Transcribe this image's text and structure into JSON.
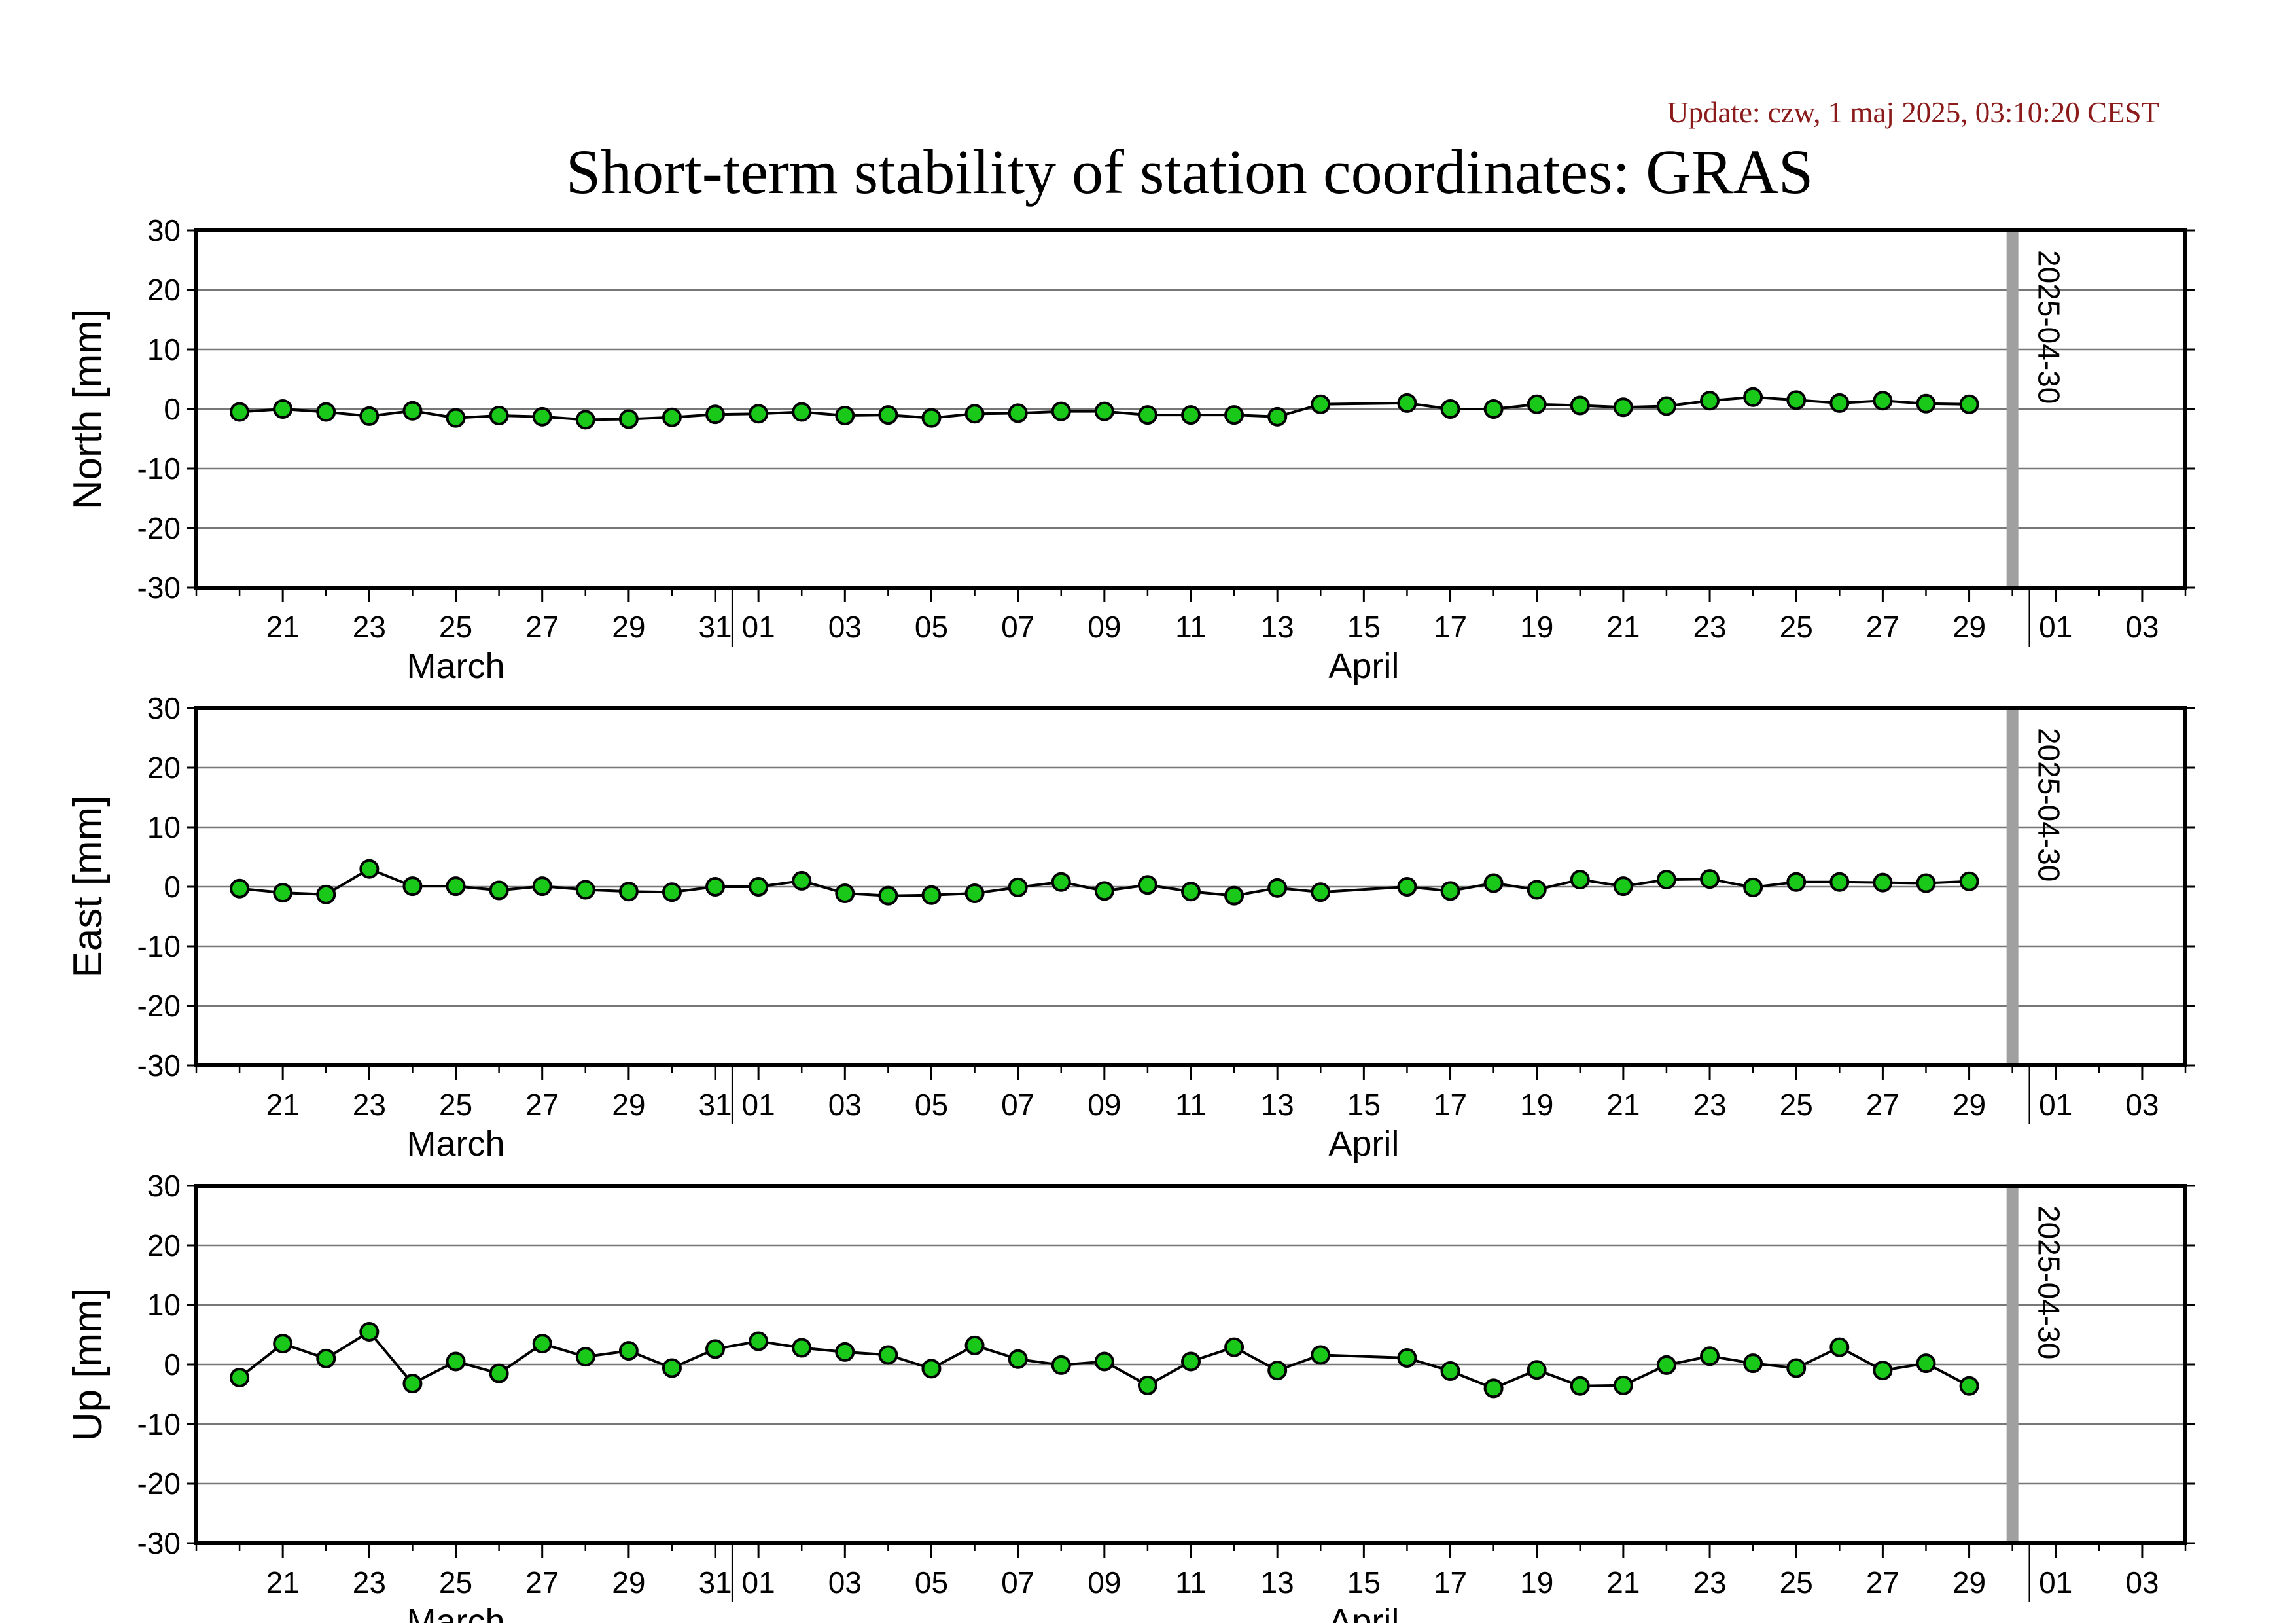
{
  "update_text": "Update: czw, 1 maj 2025, 03:10:20 CEST",
  "title": "Short-term stability of station coordinates: GRAS",
  "colors": {
    "marker_fill": "#19c819",
    "marker_stroke": "#000000",
    "line": "#000000",
    "grid": "#777777",
    "marker_line": "#a0a0a0",
    "update_text": "#8b1a1a"
  },
  "chart_data": {
    "type": "line",
    "x_axis": {
      "type": "date",
      "range": [
        "2025-03-19",
        "2025-05-04"
      ],
      "tick_labels": [
        {
          "date": "2025-03-21",
          "label": "21"
        },
        {
          "date": "2025-03-23",
          "label": "23"
        },
        {
          "date": "2025-03-25",
          "label": "25"
        },
        {
          "date": "2025-03-27",
          "label": "27"
        },
        {
          "date": "2025-03-29",
          "label": "29"
        },
        {
          "date": "2025-03-31",
          "label": "31"
        },
        {
          "date": "2025-04-01",
          "label": "01"
        },
        {
          "date": "2025-04-03",
          "label": "03"
        },
        {
          "date": "2025-04-05",
          "label": "05"
        },
        {
          "date": "2025-04-07",
          "label": "07"
        },
        {
          "date": "2025-04-09",
          "label": "09"
        },
        {
          "date": "2025-04-11",
          "label": "11"
        },
        {
          "date": "2025-04-13",
          "label": "13"
        },
        {
          "date": "2025-04-15",
          "label": "15"
        },
        {
          "date": "2025-04-17",
          "label": "17"
        },
        {
          "date": "2025-04-19",
          "label": "19"
        },
        {
          "date": "2025-04-21",
          "label": "21"
        },
        {
          "date": "2025-04-23",
          "label": "23"
        },
        {
          "date": "2025-04-25",
          "label": "25"
        },
        {
          "date": "2025-04-27",
          "label": "27"
        },
        {
          "date": "2025-04-29",
          "label": "29"
        },
        {
          "date": "2025-05-01",
          "label": "01"
        },
        {
          "date": "2025-05-03",
          "label": "03"
        }
      ],
      "month_labels": [
        {
          "date": "2025-03-25",
          "label": "March"
        },
        {
          "date": "2025-04-15",
          "label": "April"
        }
      ],
      "month_boundaries": [
        "2025-04-01",
        "2025-05-01"
      ]
    },
    "marker_line": {
      "date": "2025-04-30",
      "label": "2025-04-30"
    },
    "x": [
      "2025-03-20",
      "2025-03-21",
      "2025-03-22",
      "2025-03-23",
      "2025-03-24",
      "2025-03-25",
      "2025-03-26",
      "2025-03-27",
      "2025-03-28",
      "2025-03-29",
      "2025-03-30",
      "2025-03-31",
      "2025-04-01",
      "2025-04-02",
      "2025-04-03",
      "2025-04-04",
      "2025-04-05",
      "2025-04-06",
      "2025-04-07",
      "2025-04-08",
      "2025-04-09",
      "2025-04-10",
      "2025-04-11",
      "2025-04-12",
      "2025-04-13",
      "2025-04-14",
      "2025-04-16",
      "2025-04-17",
      "2025-04-18",
      "2025-04-19",
      "2025-04-20",
      "2025-04-21",
      "2025-04-22",
      "2025-04-23",
      "2025-04-24",
      "2025-04-25",
      "2025-04-26",
      "2025-04-27",
      "2025-04-28",
      "2025-04-29"
    ],
    "series": [
      {
        "name": "North",
        "ylabel": "North [mm]",
        "ylim": [
          -30,
          30
        ],
        "yticks": [
          30,
          20,
          10,
          0,
          -10,
          -20,
          -30
        ],
        "values": [
          -0.5,
          0,
          -0.5,
          -1.2,
          -0.3,
          -1.5,
          -1.1,
          -1.3,
          -1.8,
          -1.7,
          -1.4,
          -0.9,
          -0.8,
          -0.5,
          -1.1,
          -1.0,
          -1.5,
          -0.8,
          -0.7,
          -0.4,
          -0.4,
          -1.0,
          -1.0,
          -1.0,
          -1.3,
          0.8,
          1.0,
          0,
          0,
          0.8,
          0.6,
          0.3,
          0.5,
          1.4,
          2.0,
          1.5,
          1.0,
          1.4,
          0.9,
          0.8
        ]
      },
      {
        "name": "East",
        "ylabel": "East [mm]",
        "ylim": [
          -30,
          30
        ],
        "yticks": [
          30,
          20,
          10,
          0,
          -10,
          -20,
          -30
        ],
        "values": [
          -0.3,
          -1.0,
          -1.3,
          3.0,
          0.1,
          0.1,
          -0.6,
          0.1,
          -0.5,
          -0.8,
          -0.9,
          0,
          0,
          1.0,
          -1.1,
          -1.5,
          -1.4,
          -1.1,
          -0.1,
          0.8,
          -0.7,
          0.3,
          -0.8,
          -1.5,
          -0.2,
          -0.9,
          0,
          -0.7,
          0.6,
          -0.5,
          1.2,
          0.1,
          1.2,
          1.3,
          -0.1,
          0.8,
          0.8,
          0.7,
          0.6,
          0.9
        ]
      },
      {
        "name": "Up",
        "ylabel": "Up [mm]",
        "ylim": [
          -30,
          30
        ],
        "yticks": [
          30,
          20,
          10,
          0,
          -10,
          -20,
          -30
        ],
        "values": [
          -2.2,
          3.5,
          1.0,
          5.5,
          -3.2,
          0.5,
          -1.5,
          3.5,
          1.3,
          2.3,
          -0.6,
          2.6,
          3.9,
          2.8,
          2.1,
          1.6,
          -0.7,
          3.2,
          0.9,
          -0.1,
          0.5,
          -3.5,
          0.5,
          2.9,
          -1.0,
          1.6,
          1.1,
          -1.1,
          -4.0,
          -0.9,
          -3.6,
          -3.5,
          -0.1,
          1.4,
          0.2,
          -0.6,
          2.9,
          -1.0,
          0.2,
          -3.6
        ]
      }
    ]
  }
}
